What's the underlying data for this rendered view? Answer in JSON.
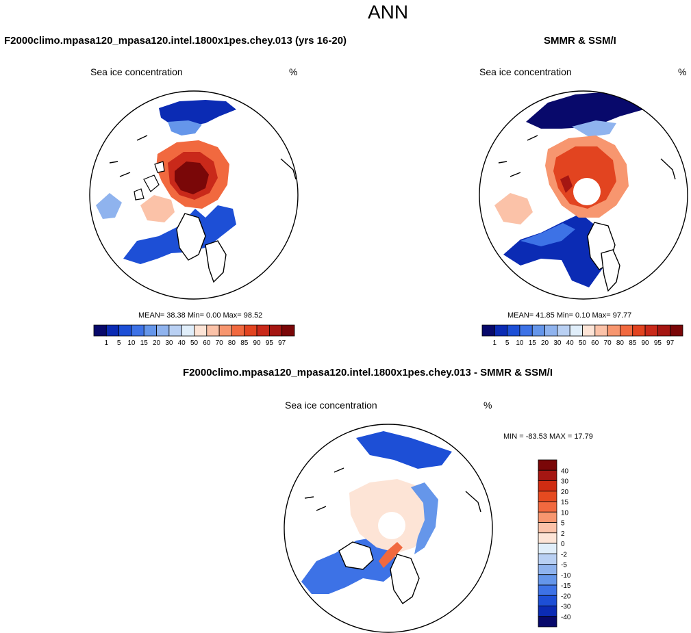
{
  "page": {
    "title": "ANN",
    "bottom_title": "F2000climo.mpasa120_mpasa120.intel.1800x1pes.chey.013 - SMMR & SSM/I"
  },
  "panels": [
    {
      "name": "F2000climo.mpasa120_mpasa120.intel.1800x1pes.chey.013 (yrs 16-20)",
      "field": "Sea ice concentration",
      "units": "%",
      "stats": "MEAN=  38.38  Min=   0.00  Max=  98.52"
    },
    {
      "name": "SMMR & SSM/I",
      "field": "Sea ice concentration",
      "units": "%",
      "stats": "MEAN=  41.85  Min=   0.10  Max=  97.77"
    },
    {
      "name": "",
      "field": "Sea ice concentration",
      "units": "%",
      "stats": "MIN = -83.53 MAX =  17.79"
    }
  ],
  "colorbars": {
    "absolute": {
      "labels": [
        "1",
        "5",
        "10",
        "15",
        "20",
        "30",
        "40",
        "50",
        "60",
        "70",
        "80",
        "85",
        "90",
        "95",
        "97"
      ],
      "colors": [
        "#08096b",
        "#0b2bb4",
        "#1d4fd6",
        "#3d72e6",
        "#6596ea",
        "#8fb3ee",
        "#b9d0f3",
        "#e0eefa",
        "#fde4d6",
        "#fbc2a8",
        "#f7966f",
        "#f1693f",
        "#e24420",
        "#c9291a",
        "#a51612",
        "#7a0708"
      ]
    },
    "difference": {
      "labels": [
        "40",
        "30",
        "20",
        "15",
        "10",
        "5",
        "2",
        "0",
        "-2",
        "-5",
        "-10",
        "-15",
        "-20",
        "-30",
        "-40"
      ],
      "colors": [
        "#7a0708",
        "#a51612",
        "#cf2c12",
        "#e54a20",
        "#f1693f",
        "#f7966f",
        "#fbc2a8",
        "#fde4d6",
        "#e0eefa",
        "#b9d0f3",
        "#8fb3ee",
        "#6596ea",
        "#3d72e6",
        "#1d4fd6",
        "#0b2bb4",
        "#08096b"
      ]
    }
  }
}
